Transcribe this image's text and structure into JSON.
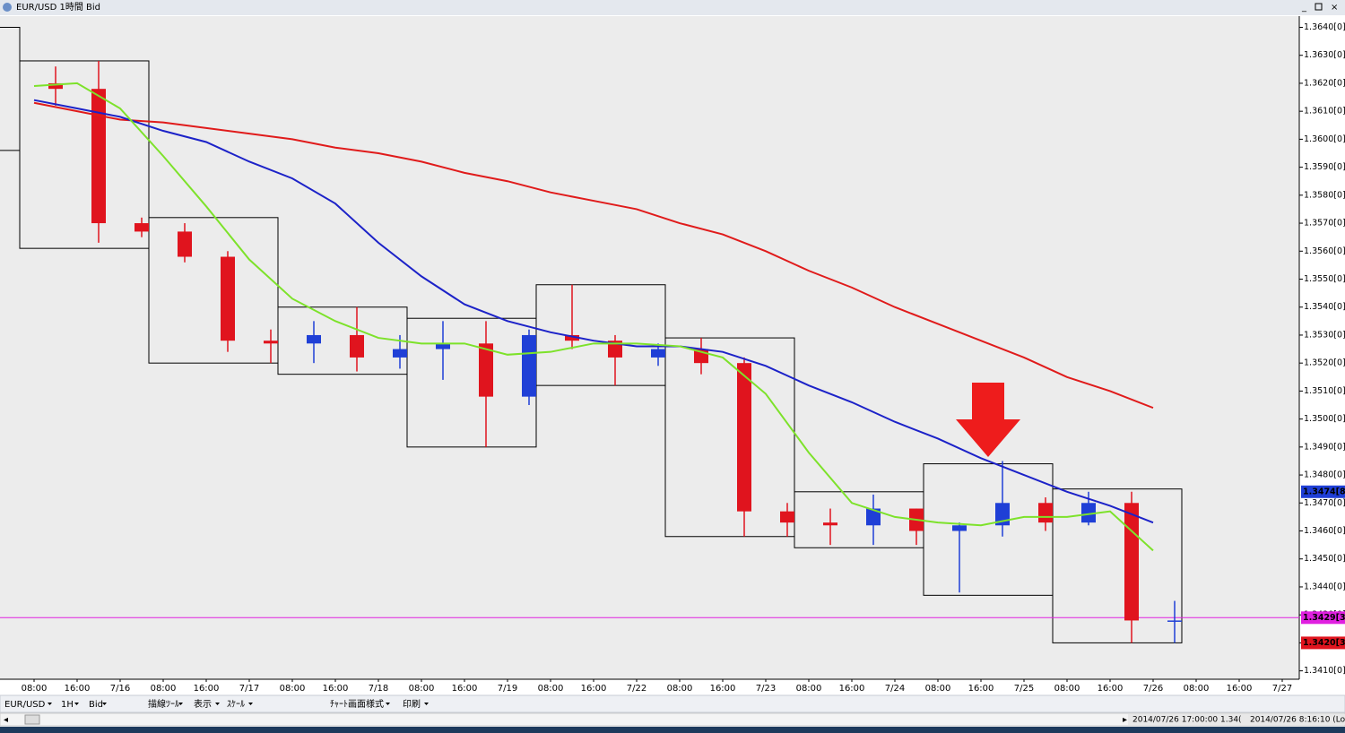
{
  "window": {
    "title": "EUR/USD 1時間 Bid"
  },
  "toolbar": [
    "EUR/USD",
    "1H",
    "Bid",
    "描線ﾂｰﾙ",
    "表示",
    "ｽｹｰﾙ",
    "ﾁｬｰﾄ画面様式",
    "印刷"
  ],
  "status": [
    "2014/07/26 17:00:00  1.34(",
    "2014/07/26 8:16:10 (Lo"
  ],
  "chart_data": {
    "type": "candlestick",
    "categories": [
      "08:00",
      "16:00",
      "7/16",
      "08:00",
      "16:00",
      "7/17",
      "08:00",
      "16:00",
      "7/18",
      "08:00",
      "16:00",
      "7/19",
      "08:00",
      "16:00",
      "7/22",
      "08:00",
      "16:00",
      "7/23",
      "08:00",
      "16:00",
      "7/24",
      "08:00",
      "16:00",
      "7/25",
      "08:00",
      "16:00",
      "7/26",
      "08:00",
      "16:00",
      "7/27"
    ],
    "open": [
      1.362,
      1.3618,
      1.357,
      1.3567,
      1.3558,
      1.3528,
      1.3527,
      1.353,
      1.3522,
      1.3525,
      1.3527,
      1.3508,
      1.353,
      1.3528,
      1.3522,
      1.3525,
      1.352,
      1.3467,
      1.3463,
      1.3462,
      1.3468,
      1.346,
      1.3462,
      1.347,
      1.3463,
      1.347,
      1.3428,
      null,
      null,
      null
    ],
    "high": [
      1.3626,
      1.3628,
      1.3572,
      1.357,
      1.356,
      1.3532,
      1.3535,
      1.354,
      1.353,
      1.3535,
      1.3535,
      1.3532,
      1.3548,
      1.353,
      1.3527,
      1.3529,
      1.3522,
      1.347,
      1.3468,
      1.3473,
      1.3468,
      1.3463,
      1.3485,
      1.3472,
      1.3474,
      1.3474,
      1.3435,
      null,
      null,
      null
    ],
    "low": [
      1.3612,
      1.3563,
      1.3565,
      1.3556,
      1.3524,
      1.352,
      1.352,
      1.3517,
      1.3518,
      1.3514,
      1.349,
      1.3505,
      1.3525,
      1.3512,
      1.3519,
      1.3516,
      1.3458,
      1.3458,
      1.3455,
      1.3455,
      1.3455,
      1.3438,
      1.3458,
      1.346,
      1.3462,
      1.342,
      1.342,
      null,
      null,
      null
    ],
    "close": [
      1.3618,
      1.357,
      1.3567,
      1.3558,
      1.3528,
      1.3527,
      1.353,
      1.3522,
      1.3525,
      1.3527,
      1.3508,
      1.353,
      1.3528,
      1.3522,
      1.3525,
      1.352,
      1.3467,
      1.3463,
      1.3462,
      1.3468,
      1.346,
      1.3462,
      1.347,
      1.3463,
      1.347,
      1.3428,
      1.3428,
      null,
      null,
      null
    ],
    "up_color": "#1f3fd6",
    "down_color": "#e0141e",
    "series": [
      {
        "color": "#e01b1b",
        "values": [
          1.3613,
          1.361,
          1.3607,
          1.3606,
          1.3604,
          1.3602,
          1.36,
          1.3597,
          1.3595,
          1.3592,
          1.3588,
          1.3585,
          1.3581,
          1.3578,
          1.3575,
          1.357,
          1.3566,
          1.356,
          1.3553,
          1.3547,
          1.354,
          1.3534,
          1.3528,
          1.3522,
          1.3515,
          1.351,
          1.3504,
          null,
          null,
          null
        ]
      },
      {
        "color": "#1c22c8",
        "values": [
          1.3614,
          1.3611,
          1.3608,
          1.3603,
          1.3599,
          1.3592,
          1.3586,
          1.3577,
          1.3563,
          1.3551,
          1.3541,
          1.3535,
          1.3531,
          1.3528,
          1.3526,
          1.3526,
          1.3524,
          1.3519,
          1.3512,
          1.3506,
          1.3499,
          1.3493,
          1.3486,
          1.348,
          1.3474,
          1.3469,
          1.3463,
          null,
          null,
          null
        ]
      },
      {
        "color": "#7de22a",
        "values": [
          1.3619,
          1.362,
          1.3611,
          1.3594,
          1.3576,
          1.3557,
          1.3543,
          1.3535,
          1.3529,
          1.3527,
          1.3527,
          1.3523,
          1.3524,
          1.3527,
          1.3527,
          1.3526,
          1.3522,
          1.3509,
          1.3488,
          1.347,
          1.3465,
          1.3463,
          1.3462,
          1.3465,
          1.3465,
          1.3467,
          1.3453,
          null,
          null,
          null
        ]
      }
    ],
    "daily_ranges": [
      {
        "high": 1.364,
        "low": 1.3596
      },
      {
        "high": 1.3628,
        "low": 1.3561
      },
      {
        "high": 1.3572,
        "low": 1.352
      },
      {
        "high": 1.354,
        "low": 1.3516
      },
      {
        "high": 1.3536,
        "low": 1.349
      },
      {
        "high": 1.3548,
        "low": 1.3512
      },
      {
        "high": 1.3529,
        "low": 1.3458
      },
      {
        "high": 1.3474,
        "low": 1.3454
      },
      {
        "high": 1.3484,
        "low": 1.3437
      },
      {
        "high": 1.3475,
        "low": 1.342
      }
    ],
    "price_markers": [
      {
        "value": 1.3474,
        "label": "1.3474[8",
        "color": "#1f3fd6",
        "line": false
      },
      {
        "value": 1.3429,
        "label": "1.3429[3",
        "color": "#e020e0",
        "line": true
      },
      {
        "value": 1.342,
        "label": "1.3420[3",
        "color": "#e0141e",
        "line": false
      }
    ],
    "ylim": [
      1.3407,
      1.3644
    ],
    "yticks": [
      {
        "value": 1.341,
        "label": "1.3410[0]"
      },
      {
        "value": 1.342,
        "label": "1.3420[0]"
      },
      {
        "value": 1.343,
        "label": "1.3430[0]"
      },
      {
        "value": 1.344,
        "label": "1.3440[0]"
      },
      {
        "value": 1.345,
        "label": "1.3450[0]"
      },
      {
        "value": 1.346,
        "label": "1.3460[0]"
      },
      {
        "value": 1.347,
        "label": "1.3470[0]"
      },
      {
        "value": 1.348,
        "label": "1.3480[0]"
      },
      {
        "value": 1.349,
        "label": "1.3490[0]"
      },
      {
        "value": 1.35,
        "label": "1.3500[0]"
      },
      {
        "value": 1.351,
        "label": "1.3510[0]"
      },
      {
        "value": 1.352,
        "label": "1.3520[0]"
      },
      {
        "value": 1.353,
        "label": "1.3530[0]"
      },
      {
        "value": 1.354,
        "label": "1.3540[0]"
      },
      {
        "value": 1.355,
        "label": "1.3550[0]"
      },
      {
        "value": 1.356,
        "label": "1.3560[0]"
      },
      {
        "value": 1.357,
        "label": "1.3570[0]"
      },
      {
        "value": 1.358,
        "label": "1.3580[0]"
      },
      {
        "value": 1.359,
        "label": "1.3590[0]"
      },
      {
        "value": 1.36,
        "label": "1.3600[0]"
      },
      {
        "value": 1.361,
        "label": "1.3610[0]"
      },
      {
        "value": 1.362,
        "label": "1.3620[0]"
      },
      {
        "value": 1.363,
        "label": "1.3630[0]"
      },
      {
        "value": 1.364,
        "label": "1.3640[0]"
      }
    ]
  }
}
